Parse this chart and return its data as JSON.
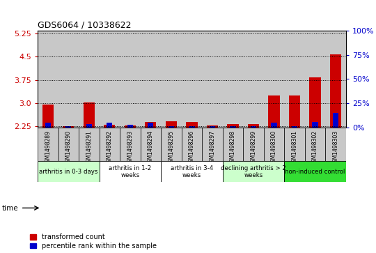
{
  "title": "GDS6064 / 10338622",
  "samples": [
    "GSM1498289",
    "GSM1498290",
    "GSM1498291",
    "GSM1498292",
    "GSM1498293",
    "GSM1498294",
    "GSM1498295",
    "GSM1498296",
    "GSM1498297",
    "GSM1498298",
    "GSM1498299",
    "GSM1498300",
    "GSM1498301",
    "GSM1498302",
    "GSM1498303"
  ],
  "transformed_count": [
    2.96,
    2.25,
    3.02,
    2.3,
    2.28,
    2.38,
    2.42,
    2.38,
    2.27,
    2.32,
    2.32,
    3.25,
    3.25,
    3.82,
    4.58
  ],
  "percentile_rank": [
    5,
    2,
    4,
    5,
    3,
    5,
    2,
    2,
    2,
    2,
    2,
    5,
    2,
    6,
    15
  ],
  "groups": [
    {
      "label": "arthritis in 0-3 days",
      "start": 0,
      "end": 3,
      "color": "#ccffcc"
    },
    {
      "label": "arthritis in 1-2\nweeks",
      "start": 3,
      "end": 6,
      "color": "#ffffff"
    },
    {
      "label": "arthritis in 3-4\nweeks",
      "start": 6,
      "end": 9,
      "color": "#ffffff"
    },
    {
      "label": "declining arthritis > 2\nweeks",
      "start": 9,
      "end": 12,
      "color": "#ccffcc"
    },
    {
      "label": "non-induced control",
      "start": 12,
      "end": 15,
      "color": "#33dd33"
    }
  ],
  "ylim_left": [
    2.2,
    5.35
  ],
  "ylim_right": [
    0,
    100
  ],
  "yticks_left": [
    2.25,
    3.0,
    3.75,
    4.5,
    5.25
  ],
  "yticks_right": [
    0,
    25,
    50,
    75,
    100
  ],
  "ylabel_right_color": "#0000cc",
  "ylabel_left_color": "#cc0000",
  "bar_color_red": "#cc0000",
  "bar_color_blue": "#0000cc",
  "bar_width": 0.55,
  "blue_bar_width": 0.28,
  "col_color": "#c8c8c8",
  "baseline": 2.2
}
